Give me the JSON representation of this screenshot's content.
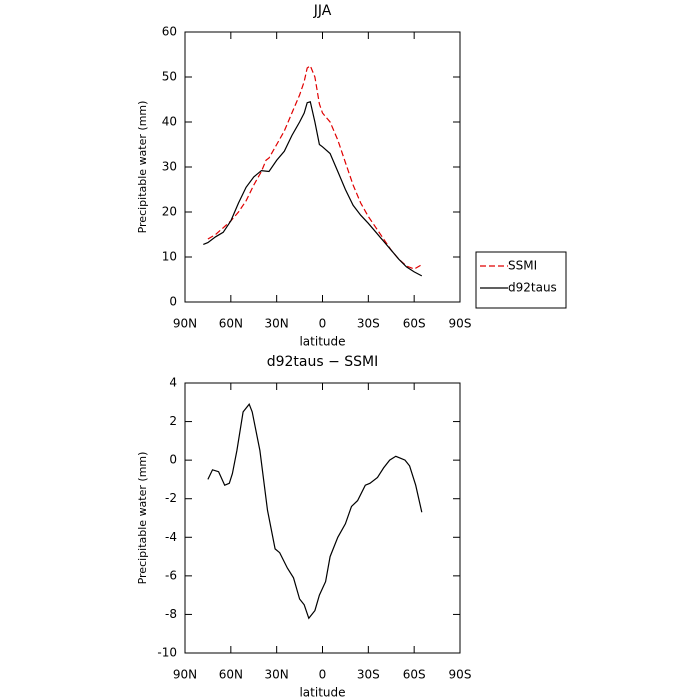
{
  "chart_data": [
    {
      "type": "line",
      "title": "JJA",
      "xlabel": "latitude",
      "ylabel": "Precipitable water (mm)",
      "xlim": [
        90,
        -90
      ],
      "xticks": [
        {
          "value": 90,
          "label": "90N"
        },
        {
          "value": 60,
          "label": "60N"
        },
        {
          "value": 30,
          "label": "30N"
        },
        0,
        {
          "value": -30,
          "label": "30S"
        },
        {
          "value": -60,
          "label": "60S"
        },
        {
          "value": -90,
          "label": "90S"
        }
      ],
      "ylim": [
        0,
        60
      ],
      "yticks": [
        0,
        10,
        20,
        30,
        40,
        50,
        60
      ],
      "legend": "right",
      "series": [
        {
          "name": "SSMI",
          "color": "#e00000",
          "style": "dashed",
          "x": [
            75,
            70,
            65,
            60,
            55,
            50,
            45,
            40,
            37,
            35,
            30,
            25,
            20,
            15,
            12,
            10,
            8,
            5,
            2,
            0,
            -5,
            -10,
            -15,
            -20,
            -25,
            -30,
            -35,
            -40,
            -45,
            -50,
            -55,
            -60,
            -65
          ],
          "values": [
            14,
            15,
            16.5,
            18,
            20,
            22.5,
            26,
            29,
            31.5,
            32,
            35,
            38,
            42,
            46,
            49,
            52,
            52.5,
            50,
            44,
            42,
            40,
            36,
            31,
            26,
            22,
            19,
            16.5,
            14,
            11.5,
            9.5,
            8,
            7.3,
            8.3
          ]
        },
        {
          "name": "d92taus",
          "color": "#000000",
          "style": "solid",
          "x": [
            78,
            75,
            70,
            65,
            60,
            55,
            50,
            45,
            40,
            35,
            30,
            25,
            20,
            15,
            12,
            10,
            8,
            5,
            2,
            0,
            -5,
            -10,
            -15,
            -20,
            -25,
            -30,
            -35,
            -40,
            -45,
            -50,
            -55,
            -60,
            -65
          ],
          "values": [
            12.8,
            13.2,
            14.5,
            15.5,
            18,
            22,
            25.5,
            27.8,
            29.2,
            29,
            31.5,
            33.5,
            37,
            40,
            42,
            44.3,
            44.5,
            40,
            35,
            34.5,
            33,
            29,
            25,
            21.5,
            19.3,
            17.5,
            15.5,
            13.5,
            11.5,
            9.5,
            7.8,
            6.7,
            5.8
          ]
        }
      ]
    },
    {
      "type": "line",
      "title": "d92taus − SSMI",
      "xlabel": "latitude",
      "ylabel": "Precipitable water (mm)",
      "xlim": [
        90,
        -90
      ],
      "xticks": [
        {
          "value": 90,
          "label": "90N"
        },
        {
          "value": 60,
          "label": "60N"
        },
        {
          "value": 30,
          "label": "30N"
        },
        0,
        {
          "value": -30,
          "label": "30S"
        },
        {
          "value": -60,
          "label": "60S"
        },
        {
          "value": -90,
          "label": "90S"
        }
      ],
      "ylim": [
        -10,
        4
      ],
      "yticks": [
        -10,
        -8,
        -6,
        -4,
        -2,
        0,
        2,
        4
      ],
      "series": [
        {
          "color": "#000000",
          "style": "solid",
          "x": [
            75,
            72,
            68,
            64,
            61,
            59,
            56,
            52,
            48,
            46,
            41,
            36,
            31,
            28,
            23,
            19,
            15,
            12,
            9,
            5,
            2,
            -2,
            -5,
            -10,
            -15,
            -19,
            -23,
            -28,
            -31,
            -36,
            -40,
            -44,
            -48,
            -51,
            -54,
            -57,
            -61,
            -65
          ],
          "values": [
            -1.0,
            -0.5,
            -0.6,
            -1.3,
            -1.2,
            -0.7,
            0.5,
            2.5,
            2.9,
            2.5,
            0.5,
            -2.6,
            -4.6,
            -4.8,
            -5.6,
            -6.1,
            -7.2,
            -7.5,
            -8.2,
            -7.8,
            -7,
            -6.3,
            -5,
            -4,
            -3.3,
            -2.4,
            -2.1,
            -1.3,
            -1.2,
            -0.9,
            -0.4,
            0,
            0.2,
            0.1,
            0,
            -0.3,
            -1.3,
            -2.7
          ]
        }
      ]
    }
  ]
}
